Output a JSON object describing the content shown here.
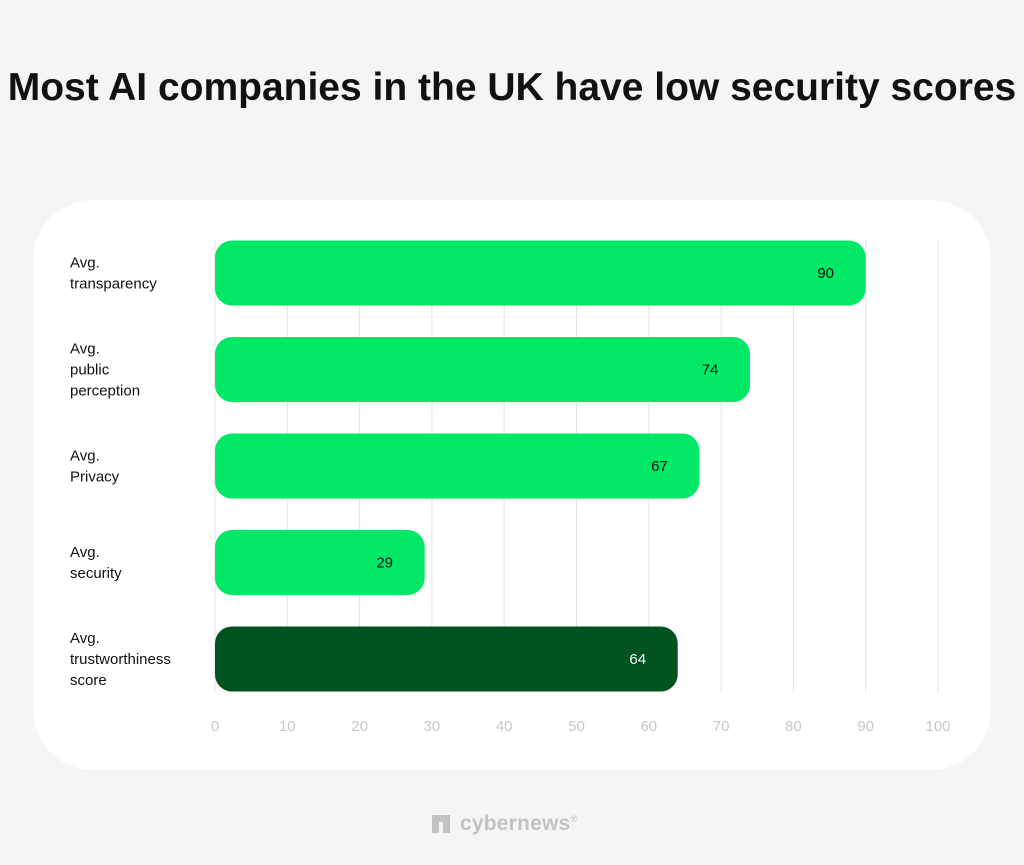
{
  "title": "Most AI companies in the UK have low security scores",
  "brand": {
    "name": "cybernews",
    "mark": "®"
  },
  "colors": {
    "background": "#f5f5f5",
    "card": "#ffffff",
    "bar_light": "#00e865",
    "bar_dark": "#005321",
    "grid": "#e3e3e3",
    "tick": "#c8c8c8",
    "text": "#111111",
    "logo": "#c2c2c2"
  },
  "chart_data": {
    "type": "bar",
    "orientation": "horizontal",
    "categories": [
      [
        "Avg.",
        "transparency"
      ],
      [
        "Avg.",
        "public",
        "perception"
      ],
      [
        "Avg.",
        "Privacy"
      ],
      [
        "Avg.",
        "security"
      ],
      [
        "Avg.",
        "trustworthiness",
        "score"
      ]
    ],
    "values": [
      90,
      74,
      67,
      29,
      64
    ],
    "bar_colors": [
      "#00e865",
      "#00e865",
      "#00e865",
      "#00e865",
      "#005321"
    ],
    "label_colors": [
      "#111111",
      "#111111",
      "#111111",
      "#111111",
      "#ffffff"
    ],
    "xlim": [
      0,
      100
    ],
    "xticks": [
      0,
      10,
      20,
      30,
      40,
      50,
      60,
      70,
      80,
      90,
      100
    ],
    "grid": true,
    "xlabel": "",
    "ylabel": ""
  }
}
